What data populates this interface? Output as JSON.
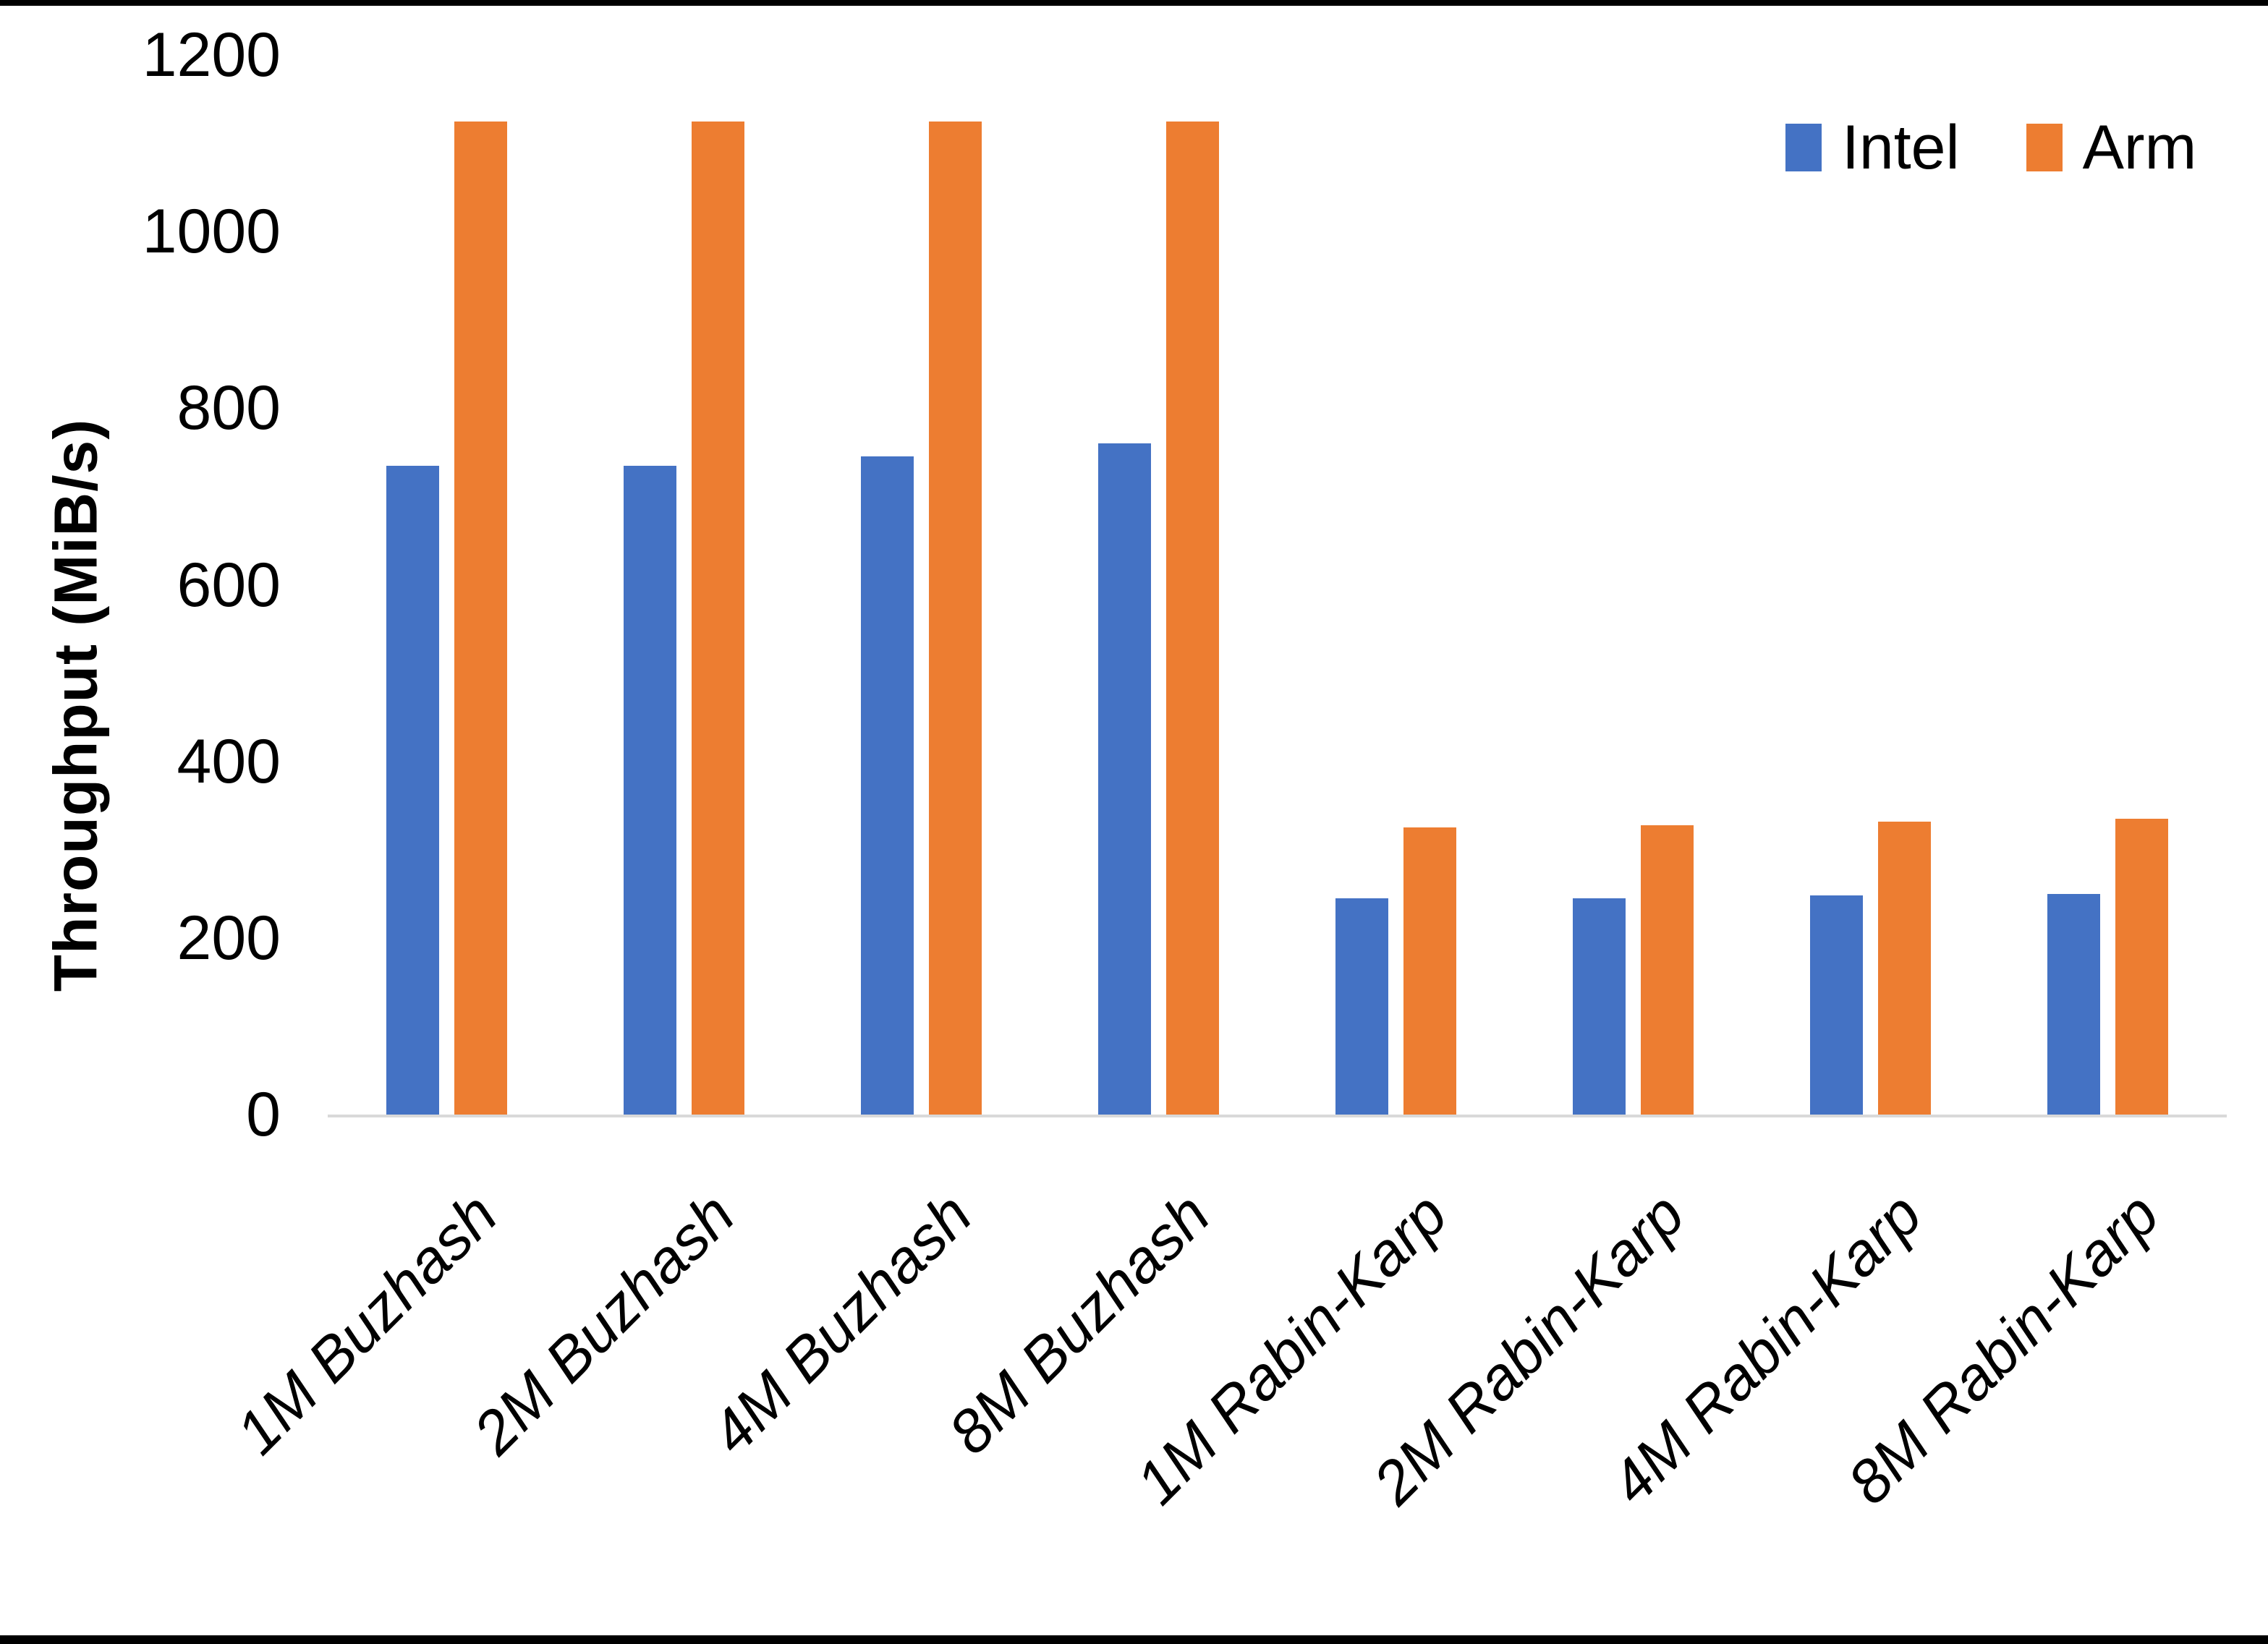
{
  "figure": {
    "background_color": "#FFFFFF",
    "frame_color": "#000000"
  },
  "chart_data": {
    "type": "bar",
    "title": "",
    "xlabel": "",
    "ylabel": "Throughput (MiB/s)",
    "ylim": [
      0,
      1200
    ],
    "yticks": [
      0,
      200,
      400,
      600,
      800,
      1000,
      1200
    ],
    "grid": false,
    "legend_position": "top-right",
    "axis_line_color": "#D9D9D9",
    "text_color": "#000000",
    "categories": [
      "1M Buzhash",
      "2M Buzhash",
      "4M Buzhash",
      "8M Buzhash",
      "1M Rabin-Karp",
      "2M Rabin-Karp",
      "4M Rabin-Karp",
      "8M Rabin-Karp"
    ],
    "series": [
      {
        "name": "Intel",
        "color": "#4472C4",
        "values": [
          735,
          735,
          745,
          760,
          245,
          245,
          248,
          250
        ]
      },
      {
        "name": "Arm",
        "color": "#ED7D31",
        "values": [
          1125,
          1125,
          1125,
          1125,
          325,
          328,
          332,
          335
        ]
      }
    ]
  }
}
